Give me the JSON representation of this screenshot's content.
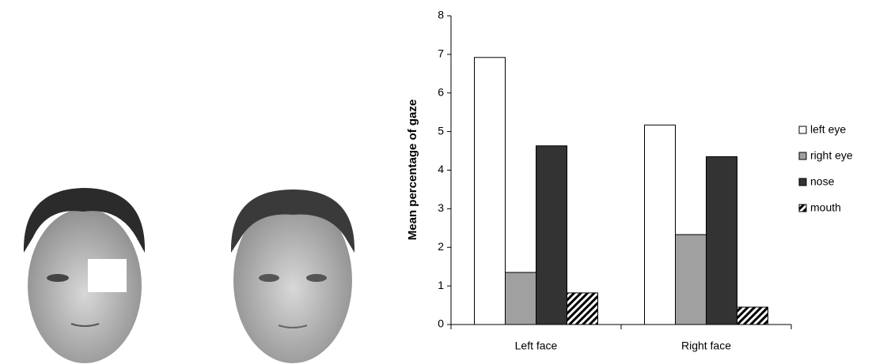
{
  "chart_data": {
    "type": "bar",
    "y_label": "Mean percentage of gaze",
    "categories": [
      "Left face",
      "Right face"
    ],
    "series": [
      {
        "name": "left eye",
        "color": "#ffffff",
        "values": [
          6.92,
          5.17
        ]
      },
      {
        "name": "right eye",
        "color": "#a0a0a0",
        "values": [
          1.35,
          2.33
        ]
      },
      {
        "name": "nose",
        "color": "#333333",
        "values": [
          4.63,
          4.35
        ]
      },
      {
        "name": "mouth",
        "color": "#ffffff",
        "pattern": "diagonal",
        "values": [
          0.82,
          0.45
        ]
      }
    ],
    "ylim": [
      0,
      8
    ],
    "yticks": [
      0,
      1,
      2,
      3,
      4,
      5,
      6,
      7,
      8
    ],
    "legend": "right"
  }
}
